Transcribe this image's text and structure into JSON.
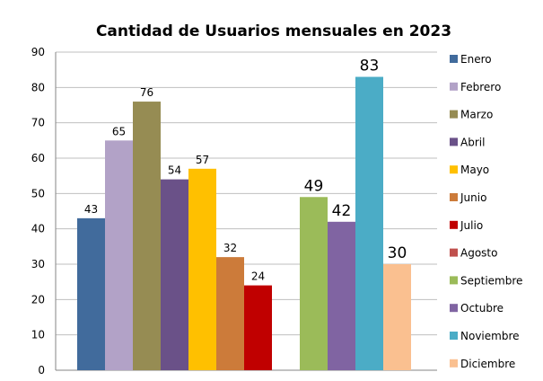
{
  "chart_data": {
    "type": "bar",
    "title": "Cantidad  de  Usuarios  mensuales  en 2023",
    "xlabel": "",
    "ylabel": "",
    "ylim": [
      0,
      90
    ],
    "yticks": [
      0,
      10,
      20,
      30,
      40,
      50,
      60,
      70,
      80,
      90
    ],
    "grid": true,
    "legend_placement": "right",
    "series": [
      {
        "name": "Enero",
        "value": 43,
        "color": "#416B9C"
      },
      {
        "name": "Febrero",
        "value": 65,
        "color": "#B2A2C7"
      },
      {
        "name": "Marzo",
        "value": 76,
        "color": "#968C53"
      },
      {
        "name": "Abril",
        "value": 54,
        "color": "#6A5188"
      },
      {
        "name": "Mayo",
        "value": 57,
        "color": "#FFC000"
      },
      {
        "name": "Junio",
        "value": 32,
        "color": "#CC7B3A"
      },
      {
        "name": "Julio",
        "value": 24,
        "color": "#C00000"
      },
      {
        "name": "Agosto",
        "value": null,
        "color": "#C0504D"
      },
      {
        "name": "Septiembre",
        "value": 49,
        "color": "#9BBB59"
      },
      {
        "name": "Octubre",
        "value": 42,
        "color": "#8064A2"
      },
      {
        "name": "Noviembre",
        "value": 83,
        "color": "#4BACC6"
      },
      {
        "name": "Diciembre",
        "value": 30,
        "color": "#FAC090"
      }
    ]
  }
}
